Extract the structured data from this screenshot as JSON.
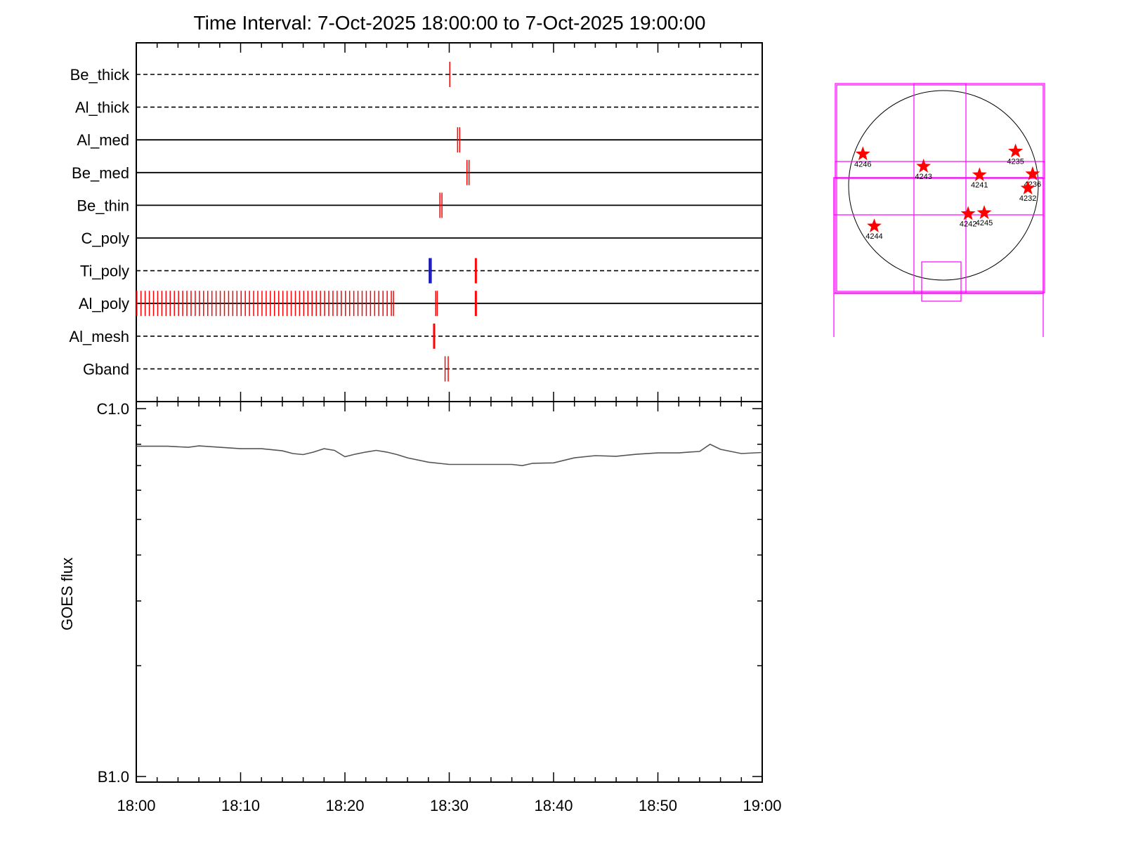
{
  "chart_data": [
    {
      "type": "event-timeline",
      "title": "Time Interval:  7-Oct-2025 18:00:00 to  7-Oct-2025 19:00:00",
      "x_range": [
        "18:00",
        "19:00"
      ],
      "x_tick_labels": [
        "18:00",
        "18:10",
        "18:20",
        "18:30",
        "18:40",
        "18:50",
        "19:00"
      ],
      "rows": [
        {
          "label": "Be_thick",
          "line": "dashed"
        },
        {
          "label": "Al_thick",
          "line": "dashed"
        },
        {
          "label": "Al_med",
          "line": "solid"
        },
        {
          "label": "Be_med",
          "line": "solid"
        },
        {
          "label": "Be_thin",
          "line": "solid"
        },
        {
          "label": "C_poly",
          "line": "solid"
        },
        {
          "label": "Ti_poly",
          "line": "dashed"
        },
        {
          "label": "Al_poly",
          "line": "solid"
        },
        {
          "label": "Al_mesh",
          "line": "dashed"
        },
        {
          "label": "Gband",
          "line": "dashed"
        }
      ],
      "events": [
        {
          "row": "Be_thick",
          "times_min": [
            30.05
          ],
          "color": "#ff0000"
        },
        {
          "row": "Al_med",
          "times_min": [
            30.8,
            31.0
          ],
          "color": "#ff0000"
        },
        {
          "row": "Be_med",
          "times_min": [
            31.7,
            31.9
          ],
          "color": "#ff0000"
        },
        {
          "row": "Be_thin",
          "times_min": [
            29.1,
            29.3
          ],
          "color": "#ff0000"
        },
        {
          "row": "Ti_poly",
          "times_min": [
            28.1,
            28.25
          ],
          "color": "#0000cc"
        },
        {
          "row": "Ti_poly",
          "times_min": [
            32.5,
            32.6
          ],
          "color": "#ff0000"
        },
        {
          "row": "Al_poly",
          "times_min": [
            0.05,
            0.45,
            0.85,
            1.25,
            1.65,
            2.05,
            2.45,
            2.85,
            3.25,
            3.65,
            4.05,
            4.45,
            4.85,
            5.25,
            5.65,
            6.05,
            6.45,
            6.85,
            7.25,
            7.65,
            8.05,
            8.45,
            8.85,
            9.25,
            9.65,
            10.05,
            10.45,
            10.85,
            11.25,
            11.65,
            12.05,
            12.45,
            12.85,
            13.25,
            13.65,
            14.05,
            14.45,
            14.85,
            15.25,
            15.65,
            16.05,
            16.45,
            16.85,
            17.25,
            17.65,
            18.05,
            18.45,
            18.85,
            19.25,
            19.65,
            20.05,
            20.45,
            20.85,
            21.25,
            21.65,
            22.05,
            22.45,
            22.85,
            23.25,
            23.65,
            24.05,
            24.45,
            24.65
          ],
          "color": "#ff0000"
        },
        {
          "row": "Al_poly",
          "times_min": [
            28.7,
            28.85,
            32.5,
            32.6
          ],
          "color": "#ff0000"
        },
        {
          "row": "Al_mesh",
          "times_min": [
            28.5,
            28.6
          ],
          "color": "#ff0000"
        },
        {
          "row": "Gband",
          "times_min": [
            29.6,
            29.9
          ],
          "color": "#ff0000"
        }
      ]
    },
    {
      "type": "line",
      "ylabel": "GOES flux",
      "y_scale": "log",
      "y_tick_labels": [
        "C1.0",
        "B1.0"
      ],
      "ylim": [
        1e-07,
        1e-06
      ],
      "x_range": [
        "18:00",
        "19:00"
      ],
      "x_tick_labels": [
        "18:00",
        "18:10",
        "18:20",
        "18:30",
        "18:40",
        "18:50",
        "19:00"
      ],
      "series": [
        {
          "color": "#555555",
          "x_min": [
            0,
            3,
            5,
            6,
            8,
            10,
            12,
            14,
            15,
            16,
            17,
            18,
            19,
            20,
            21,
            22,
            23,
            24,
            25,
            26,
            28,
            30,
            33,
            35,
            36,
            37,
            38,
            40,
            42,
            44,
            46,
            48,
            50,
            52,
            53,
            54,
            55,
            56,
            58,
            60
          ],
          "y": [
            7.9e-07,
            7.9e-07,
            7.85e-07,
            7.92e-07,
            7.85e-07,
            7.78e-07,
            7.78e-07,
            7.68e-07,
            7.55e-07,
            7.5e-07,
            7.62e-07,
            7.78e-07,
            7.7e-07,
            7.4e-07,
            7.52e-07,
            7.62e-07,
            7.7e-07,
            7.62e-07,
            7.5e-07,
            7.35e-07,
            7.15e-07,
            7.05e-07,
            7.05e-07,
            7.05e-07,
            7.05e-07,
            7e-07,
            7.1e-07,
            7.12e-07,
            7.35e-07,
            7.45e-07,
            7.42e-07,
            7.52e-07,
            7.58e-07,
            7.58e-07,
            7.62e-07,
            7.65e-07,
            8e-07,
            7.75e-07,
            7.55e-07,
            7.6e-07
          ]
        }
      ]
    },
    {
      "type": "scatter",
      "points": [
        {
          "label": "4246",
          "x": -0.85,
          "y": 0.33
        },
        {
          "label": "4243",
          "x": -0.21,
          "y": 0.2
        },
        {
          "label": "4235",
          "x": 0.76,
          "y": 0.36
        },
        {
          "label": "4236",
          "x": 0.94,
          "y": 0.12
        },
        {
          "label": "4241",
          "x": 0.38,
          "y": 0.11
        },
        {
          "label": "4232",
          "x": 0.89,
          "y": -0.03
        },
        {
          "label": "4244",
          "x": -0.73,
          "y": -0.43
        },
        {
          "label": "4242",
          "x": 0.26,
          "y": -0.3
        },
        {
          "label": "4245",
          "x": 0.43,
          "y": -0.29
        }
      ],
      "marker_color": "#ff0000",
      "box_color": "#ff00ff"
    }
  ]
}
